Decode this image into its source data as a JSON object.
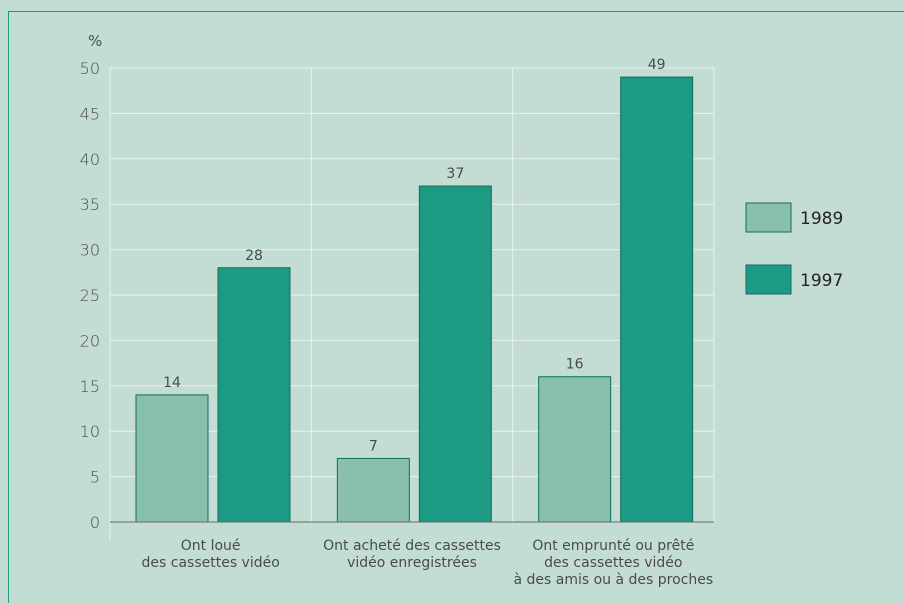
{
  "chart_data": {
    "type": "bar",
    "unit_label": "%",
    "categories": [
      [
        "Ont loué",
        "des cassettes vidéo"
      ],
      [
        "Ont acheté des cassettes",
        "vidéo enregistrées"
      ],
      [
        "Ont emprunté ou prêté",
        "des cassettes vidéo",
        "à des amis ou à des proches"
      ]
    ],
    "series": [
      {
        "name": "1989",
        "values": [
          14,
          7,
          16
        ],
        "color": "#89bfae"
      },
      {
        "name": "1997",
        "values": [
          28,
          37,
          49
        ],
        "color": "#1d9a83"
      }
    ],
    "ylim": [
      0,
      50
    ],
    "yticks": [
      0,
      5,
      10,
      15,
      20,
      25,
      30,
      35,
      40,
      45,
      50
    ],
    "grid": true,
    "legend_position": "right",
    "title": "",
    "xlabel": "",
    "ylabel": ""
  }
}
